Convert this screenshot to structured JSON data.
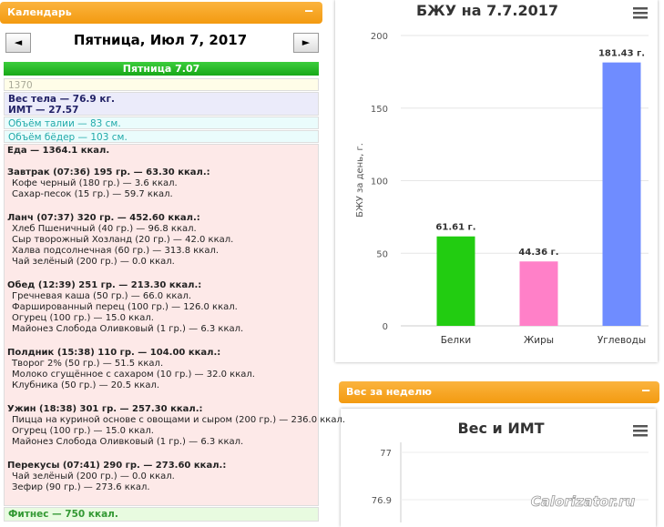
{
  "calendar": {
    "header": "Календарь",
    "date": "Пятница, Июл 7, 2017",
    "prev": "◄",
    "next": "►",
    "day": "Пятница 7.07",
    "note": "1370",
    "weight": "Вес тела — 76.9 кг.",
    "bmi": "ИМТ — 27.57",
    "waist": "Объём талии — 83 см.",
    "hips": "Объём бёдер — 103 см.",
    "food": "Еда — 1364.1 ккал.",
    "meals": [
      {
        "title": "Завтрак (07:36) 195 гр. — 63.30 ккал.:",
        "items": [
          "Кофе черный (180 гр.) — 3.6 ккал.",
          "Сахар-песок (15 гр.) — 59.7 ккал."
        ]
      },
      {
        "title": "Ланч (07:37) 320 гр. — 452.60 ккал.:",
        "items": [
          "Хлеб Пшеничный (40 гр.) — 96.8 ккал.",
          "Сыр творожный Хозланд (20 гр.) — 42.0 ккал.",
          "Халва подсолнечная (60 гр.) — 313.8 ккал.",
          "Чай зелёный (200 гр.) — 0.0 ккал."
        ]
      },
      {
        "title": "Обед (12:39) 251 гр. — 213.30 ккал.:",
        "items": [
          "Гречневая каша (50 гр.) — 66.0 ккал.",
          "Фаршированный перец (100 гр.) — 126.0 ккал.",
          "Огурец (100 гр.) — 15.0 ккал.",
          "Майонез Слобода Оливковый (1 гр.) — 6.3 ккал."
        ]
      },
      {
        "title": "Полдник (15:38) 110 гр. — 104.00 ккал.:",
        "items": [
          "Творог 2% (50 гр.) — 51.5 ккал.",
          "Молоко сгущённое с сахаром (10 гр.) — 32.0 ккал.",
          "Клубника (50 гр.) — 20.5 ккал."
        ]
      },
      {
        "title": "Ужин (18:38) 301 гр. — 257.30 ккал.:",
        "items": [
          "Пицца на куриной основе с овощами и сыром (200 гр.) — 236.0 ккал.",
          "Огурец (100 гр.) — 15.0 ккал.",
          "Майонез Слобода Оливковый (1 гр.) — 6.3 ккал."
        ]
      },
      {
        "title": "Перекусы (07:41) 290 гр. — 273.60 ккал.:",
        "items": [
          "Чай зелёный (200 гр.) — 0.0 ккал.",
          "Зефир (90 гр.) — 273.6 ккал."
        ]
      }
    ],
    "fitness": "Фитнес — 750 ккал."
  },
  "weekly_header": "Вес за неделю",
  "watermark": "Calorizator.ru",
  "chart_data": [
    {
      "type": "bar",
      "title": "БЖУ на 7.7.2017",
      "ylabel": "БЖУ за день, г.",
      "categories": [
        "Белки",
        "Жиры",
        "Углеводы"
      ],
      "values": [
        61.61,
        44.36,
        181.43
      ],
      "value_labels": [
        "61.61 г.",
        "44.36 г.",
        "181.43 г."
      ],
      "colors": [
        "#22cc11",
        "#ff80c8",
        "#6f8cff"
      ],
      "ylim": [
        0,
        200
      ],
      "yticks": [
        0,
        50,
        100,
        150,
        200
      ],
      "grid": true
    },
    {
      "type": "line",
      "title": "Вес и ИМТ",
      "ylim": [
        76.85,
        77.02
      ],
      "yticks": [
        77,
        76.9
      ],
      "grid": true
    }
  ]
}
